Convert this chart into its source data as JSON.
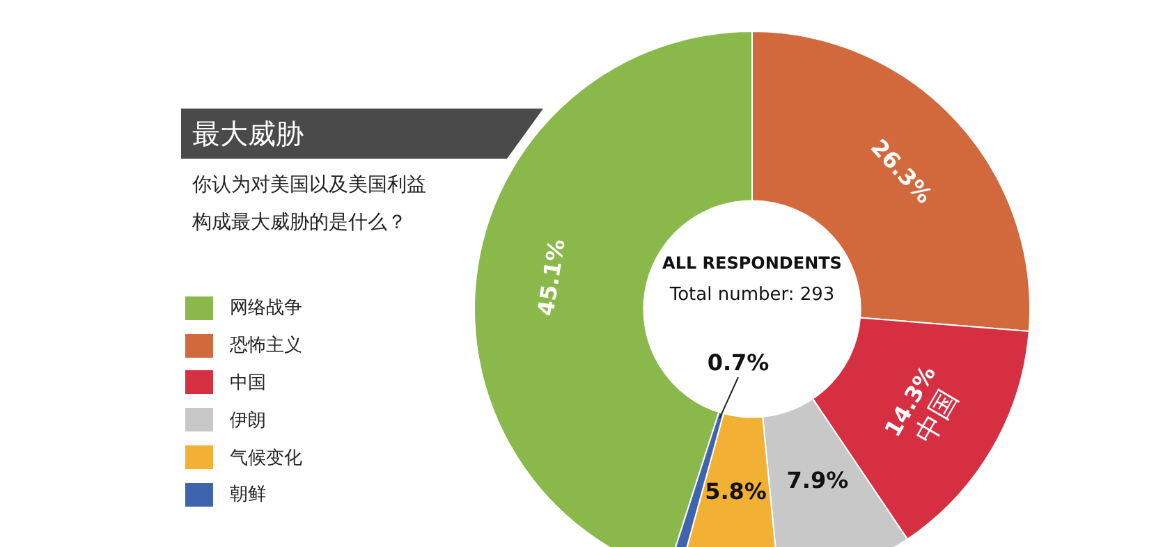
{
  "chart_data": {
    "type": "donut",
    "title": "最大威胁",
    "subtitle": "你认为对美国以及美国利益构成最大威胁的是什么？",
    "categories": [
      "网络战争",
      "恐怖主义",
      "中国",
      "伊朗",
      "气候变化",
      "朝鲜"
    ],
    "values": [
      45.1,
      26.3,
      14.3,
      7.9,
      5.8,
      0.7
    ],
    "colors": [
      "#8ab84a",
      "#d2693c",
      "#d62f42",
      "#c8c8c8",
      "#f2b134",
      "#3e64ae"
    ],
    "value_labels": [
      "45.1%",
      "26.3%",
      "14.3%",
      "7.9%",
      "5.8%",
      "0.7%"
    ],
    "annotations": [
      "ALL RESPONDENTS",
      "Total number: 293",
      {
        "text": "中国",
        "x": "中国"
      }
    ],
    "legend": "left"
  }
}
